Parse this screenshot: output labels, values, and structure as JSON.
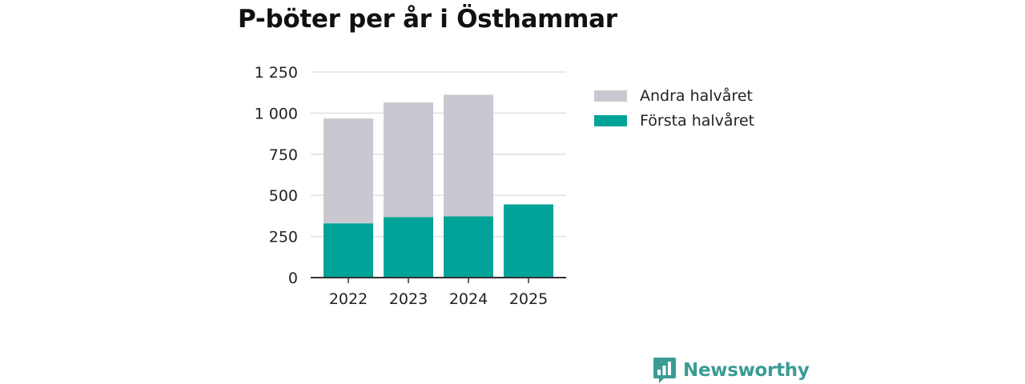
{
  "chart_data": {
    "type": "bar",
    "stacked": true,
    "title": "P-böter per år i Östhammar",
    "categories": [
      "2022",
      "2023",
      "2024",
      "2025"
    ],
    "series": [
      {
        "name": "Första halvåret",
        "color": "#00a398",
        "values": [
          330,
          368,
          372,
          445
        ]
      },
      {
        "name": "Andra halvåret",
        "color": "#c9c8d0",
        "values": [
          637,
          697,
          740,
          0
        ]
      }
    ],
    "ylim": [
      0,
      1250
    ],
    "yticks": [
      0,
      250,
      500,
      750,
      1000,
      1250
    ],
    "ytick_labels": [
      "0",
      "250",
      "500",
      "750",
      "1 000",
      "1 250"
    ],
    "xlabel": "",
    "ylabel": "",
    "grid": true,
    "legend_position": "right"
  },
  "legend": {
    "items": [
      {
        "label": "Andra halvåret",
        "color": "#c9c8d0"
      },
      {
        "label": "Första halvåret",
        "color": "#00a398"
      }
    ]
  },
  "brand": {
    "name": "Newsworthy",
    "color": "#3a9c94",
    "icon": "bar-chart-speech-bubble-icon"
  }
}
